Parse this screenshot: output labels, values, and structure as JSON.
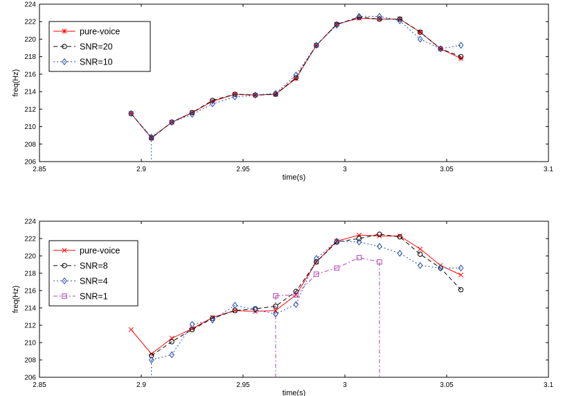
{
  "chart_data": [
    {
      "type": "line",
      "xlabel": "time(s)",
      "ylabel": "freq(Hz)",
      "xlim": [
        2.85,
        3.1
      ],
      "ylim": [
        206,
        224
      ],
      "xticks": [
        "2.85",
        "2.9",
        "2.95",
        "3",
        "3.05",
        "3.1"
      ],
      "yticks": [
        "206",
        "208",
        "210",
        "212",
        "214",
        "216",
        "218",
        "220",
        "222",
        "224"
      ],
      "grid": false,
      "legend_position": "top-left",
      "series": [
        {
          "name": "pure-voice",
          "color": "#ff0000",
          "dash": "solid",
          "marker": "star",
          "x": [
            2.895,
            2.905,
            2.915,
            2.925,
            2.935,
            2.946,
            2.956,
            2.966,
            2.976,
            2.986,
            2.996,
            3.007,
            3.017,
            3.027,
            3.037,
            3.047,
            3.057
          ],
          "y": [
            211.5,
            208.7,
            210.5,
            211.6,
            212.9,
            213.7,
            213.6,
            213.7,
            215.5,
            219.3,
            221.7,
            222.4,
            222.3,
            222.3,
            220.8,
            218.9,
            217.8
          ]
        },
        {
          "name": "SNR=20",
          "color": "#000000",
          "dash": "dashed",
          "marker": "circle",
          "x": [
            2.895,
            2.905,
            2.915,
            2.925,
            2.935,
            2.946,
            2.956,
            2.966,
            2.976,
            2.986,
            2.996,
            3.007,
            3.017,
            3.027,
            3.037,
            3.047,
            3.057
          ],
          "y": [
            211.5,
            208.7,
            210.5,
            211.6,
            213.0,
            213.7,
            213.6,
            213.7,
            215.6,
            219.3,
            221.7,
            222.5,
            222.3,
            222.3,
            220.8,
            218.9,
            218.0
          ]
        },
        {
          "name": "SNR=10",
          "color": "#1f4aa8",
          "dash": "dotted",
          "marker": "diamond",
          "x": [
            2.895,
            2.905,
            2.915,
            2.925,
            2.935,
            2.946,
            2.956,
            2.966,
            2.976,
            2.986,
            2.996,
            3.007,
            3.017,
            3.027,
            3.037,
            3.047,
            3.057
          ],
          "y": [
            211.5,
            208.8,
            210.5,
            211.4,
            212.6,
            213.4,
            213.6,
            213.8,
            215.9,
            219.3,
            221.6,
            222.6,
            222.6,
            222.1,
            220.0,
            218.9,
            219.3
          ],
          "drop_at_x": 2.905
        }
      ]
    },
    {
      "type": "line",
      "xlabel": "time(s)",
      "ylabel": "freq(Hz)",
      "xlim": [
        2.85,
        3.1
      ],
      "ylim": [
        206,
        224
      ],
      "xticks": [
        "2.85",
        "2.9",
        "2.95",
        "3",
        "3.05",
        "3.1"
      ],
      "yticks": [
        "206",
        "208",
        "210",
        "212",
        "214",
        "216",
        "218",
        "220",
        "222",
        "224"
      ],
      "grid": false,
      "legend_position": "top-left",
      "series": [
        {
          "name": "pure-voice",
          "color": "#ff0000",
          "dash": "solid",
          "marker": "x",
          "x": [
            2.895,
            2.905,
            2.915,
            2.925,
            2.935,
            2.946,
            2.956,
            2.966,
            2.976,
            2.986,
            2.996,
            3.007,
            3.017,
            3.027,
            3.037,
            3.047,
            3.057
          ],
          "y": [
            211.5,
            208.7,
            210.5,
            211.6,
            212.9,
            213.7,
            213.6,
            213.7,
            215.5,
            219.3,
            221.7,
            222.4,
            222.3,
            222.3,
            220.8,
            218.9,
            217.8
          ]
        },
        {
          "name": "SNR=8",
          "color": "#000000",
          "dash": "dashed",
          "marker": "circle",
          "x": [
            2.905,
            2.915,
            2.925,
            2.935,
            2.946,
            2.956,
            2.966,
            2.976,
            2.986,
            2.996,
            3.007,
            3.017,
            3.027,
            3.037,
            3.047,
            3.057
          ],
          "y": [
            208.5,
            210.1,
            211.5,
            212.8,
            213.7,
            213.9,
            214.2,
            215.9,
            219.3,
            221.6,
            222.0,
            222.5,
            222.2,
            220.2,
            218.6,
            216.1
          ]
        },
        {
          "name": "SNR=4",
          "color": "#1f4aa8",
          "dash": "dotted",
          "marker": "diamond",
          "x": [
            2.905,
            2.915,
            2.925,
            2.935,
            2.946,
            2.956,
            2.966,
            2.976,
            2.986,
            2.996,
            3.007,
            3.017,
            3.027,
            3.037,
            3.047,
            3.057
          ],
          "y": [
            208.0,
            208.6,
            212.1,
            212.6,
            214.3,
            213.8,
            213.3,
            214.4,
            219.7,
            221.7,
            221.6,
            221.1,
            220.3,
            218.9,
            218.6,
            218.6
          ],
          "drop_at_x": 2.905
        },
        {
          "name": "SNR=1",
          "color": "#b040b0",
          "dash": "dashdot",
          "marker": "square",
          "x": [
            2.966,
            2.976,
            2.986,
            2.996,
            3.007,
            3.017
          ],
          "y": [
            215.4,
            215.5,
            217.9,
            218.6,
            219.8,
            219.3
          ],
          "drop_at_x": [
            2.966,
            3.017
          ]
        }
      ]
    }
  ]
}
